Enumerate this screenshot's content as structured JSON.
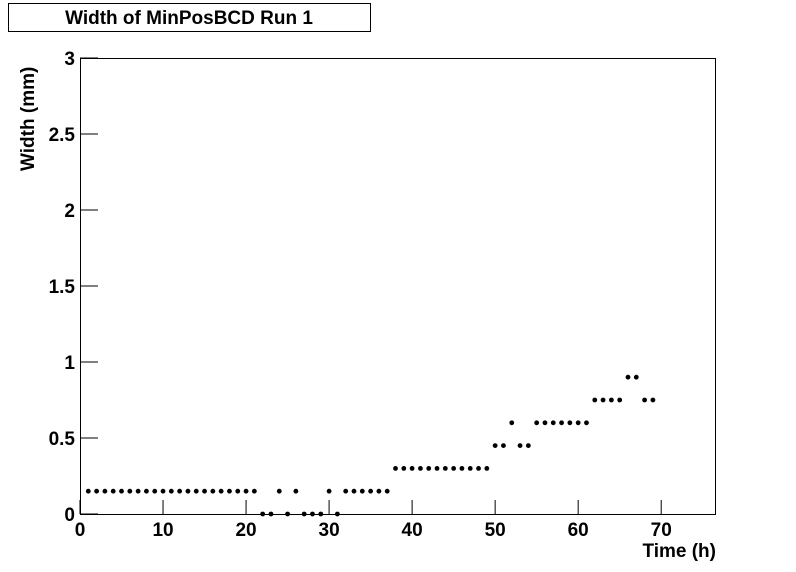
{
  "chart_data": {
    "type": "scatter",
    "title": "Width of MinPosBCD Run 1",
    "x_label": "Time (h)",
    "y_label": "Width (mm)",
    "color": "#000000",
    "x": [
      1,
      2,
      3,
      4,
      5,
      6,
      7,
      8,
      9,
      10,
      11,
      12,
      13,
      14,
      15,
      16,
      17,
      18,
      19,
      20,
      21,
      22,
      23,
      24,
      25,
      26,
      27,
      28,
      29,
      30,
      31,
      32,
      33,
      34,
      35,
      36,
      37,
      38,
      39,
      40,
      41,
      42,
      43,
      44,
      45,
      46,
      47,
      48,
      49,
      50,
      51,
      52,
      53,
      54,
      55,
      56,
      57,
      58,
      59,
      60,
      61,
      62,
      63,
      64,
      65,
      66,
      67,
      68,
      69
    ],
    "values": [
      0.15,
      0.15,
      0.15,
      0.15,
      0.15,
      0.15,
      0.15,
      0.15,
      0.15,
      0.15,
      0.15,
      0.15,
      0.15,
      0.15,
      0.15,
      0.15,
      0.15,
      0.15,
      0.15,
      0.15,
      0.15,
      0,
      0,
      0.15,
      0,
      0.15,
      0,
      0,
      0,
      0.15,
      0,
      0.15,
      0.15,
      0.15,
      0.15,
      0.15,
      0.15,
      0.3,
      0.3,
      0.3,
      0.3,
      0.3,
      0.3,
      0.3,
      0.3,
      0.3,
      0.3,
      0.3,
      0.3,
      0.45,
      0.45,
      0.6,
      0.45,
      0.45,
      0.6,
      0.6,
      0.6,
      0.6,
      0.6,
      0.6,
      0.6,
      0.75,
      0.75,
      0.75,
      0.75,
      0.9,
      0.9,
      0.75,
      0.75
    ],
    "xlim": [
      0,
      76.6
    ],
    "xticks": [
      0,
      10,
      20,
      30,
      40,
      50,
      60,
      70
    ],
    "ylim": [
      0,
      3
    ],
    "yticks": [
      0,
      0.5,
      1,
      1.5,
      2,
      2.5,
      3
    ]
  }
}
